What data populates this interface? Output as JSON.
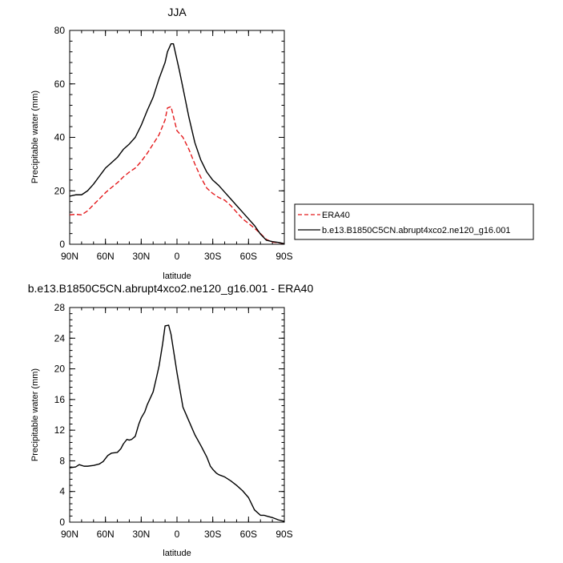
{
  "chart_data": [
    {
      "type": "line",
      "title": "JJA",
      "xlabel": "latitude",
      "ylabel": "Precipitable water (mm)",
      "xlim": [
        90,
        -90
      ],
      "ylim": [
        0,
        80
      ],
      "x_ticks": [
        {
          "value": 90,
          "label": "90N"
        },
        {
          "value": 60,
          "label": "60N"
        },
        {
          "value": 30,
          "label": "30N"
        },
        {
          "value": 0,
          "label": "0"
        },
        {
          "value": -30,
          "label": "30S"
        },
        {
          "value": -60,
          "label": "60S"
        },
        {
          "value": -90,
          "label": "90S"
        }
      ],
      "y_ticks": [
        0,
        20,
        40,
        60,
        80
      ],
      "legend_position": "right",
      "series": [
        {
          "name": "ERA40",
          "color": "#e41a1c",
          "dash": true,
          "x": [
            90,
            85,
            80,
            75,
            70,
            65,
            60,
            55,
            50,
            45,
            40,
            35,
            30,
            25,
            20,
            15,
            10,
            8,
            5,
            2,
            0,
            -5,
            -10,
            -15,
            -20,
            -25,
            -30,
            -35,
            -40,
            -45,
            -50,
            -55,
            -60,
            -65,
            -70,
            -75,
            -80,
            -85,
            -90
          ],
          "values": [
            11,
            11.2,
            11,
            12.5,
            14.8,
            17,
            19.3,
            21.2,
            23,
            25.2,
            27,
            28.5,
            31,
            34,
            37.5,
            41,
            46.5,
            51,
            51.5,
            46,
            42.5,
            40,
            35.5,
            30,
            25,
            21,
            19,
            17.5,
            16.5,
            14.5,
            12,
            9.5,
            7.8,
            6,
            4,
            1.8,
            0.8,
            0.6,
            0.2
          ]
        },
        {
          "name": "b.e13.B1850C5CN.abrupt4xco2.ne120_g16.001",
          "color": "#000000",
          "dash": false,
          "x": [
            90,
            85,
            80,
            75,
            70,
            65,
            60,
            55,
            50,
            45,
            40,
            35,
            30,
            25,
            20,
            15,
            10,
            8,
            5,
            3,
            1,
            -2,
            -5,
            -10,
            -15,
            -20,
            -25,
            -30,
            -35,
            -40,
            -45,
            -50,
            -55,
            -60,
            -65,
            -70,
            -75,
            -80,
            -85,
            -90
          ],
          "values": [
            18,
            18.5,
            18.5,
            20,
            22.5,
            25.5,
            28.5,
            30.5,
            32.5,
            35.5,
            37.5,
            40,
            44.5,
            50,
            55,
            62,
            68,
            72,
            75,
            75,
            71,
            65,
            58.5,
            47.5,
            38,
            31.5,
            27,
            24,
            22,
            19.5,
            17,
            14.5,
            12,
            9.5,
            7,
            3.8,
            1.5,
            1,
            0.7,
            0.2
          ]
        }
      ]
    },
    {
      "type": "line",
      "title": "b.e13.B1850C5CN.abrupt4xco2.ne120_g16.001 - ERA40",
      "xlabel": "latitude",
      "ylabel": "Precipitable water (mm)",
      "xlim": [
        90,
        -90
      ],
      "ylim": [
        0,
        28
      ],
      "x_ticks": [
        {
          "value": 90,
          "label": "90N"
        },
        {
          "value": 60,
          "label": "60N"
        },
        {
          "value": 30,
          "label": "30N"
        },
        {
          "value": 0,
          "label": "0"
        },
        {
          "value": -30,
          "label": "30S"
        },
        {
          "value": -60,
          "label": "60S"
        },
        {
          "value": -90,
          "label": "90S"
        }
      ],
      "y_ticks": [
        0,
        4,
        8,
        12,
        16,
        20,
        24,
        28
      ],
      "series": [
        {
          "color": "#000000",
          "dash": false,
          "x": [
            90,
            85,
            82,
            78,
            75,
            70,
            65,
            62,
            58,
            55,
            50,
            47,
            45,
            42,
            40,
            38,
            35,
            32,
            30,
            27,
            25,
            20,
            17,
            15,
            12,
            10,
            7,
            5,
            3,
            0,
            -5,
            -10,
            -15,
            -20,
            -25,
            -28,
            -30,
            -33,
            -35,
            -40,
            -45,
            -50,
            -55,
            -60,
            -65,
            -70,
            -73,
            -75,
            -80,
            -85,
            -90
          ],
          "values": [
            7.1,
            7.2,
            7.5,
            7.3,
            7.3,
            7.4,
            7.6,
            7.9,
            8.7,
            9.0,
            9.1,
            9.6,
            10.2,
            10.8,
            10.7,
            10.8,
            11.2,
            12.8,
            13.6,
            14.4,
            15.3,
            17.0,
            19.0,
            20.4,
            23.3,
            25.6,
            25.7,
            24.5,
            22.5,
            19.5,
            15.0,
            13.2,
            11.4,
            10.0,
            8.5,
            7.3,
            6.9,
            6.4,
            6.2,
            5.9,
            5.4,
            4.8,
            4.1,
            3.2,
            1.6,
            0.9,
            0.9,
            0.8,
            0.6,
            0.3,
            0.1
          ]
        }
      ]
    }
  ]
}
